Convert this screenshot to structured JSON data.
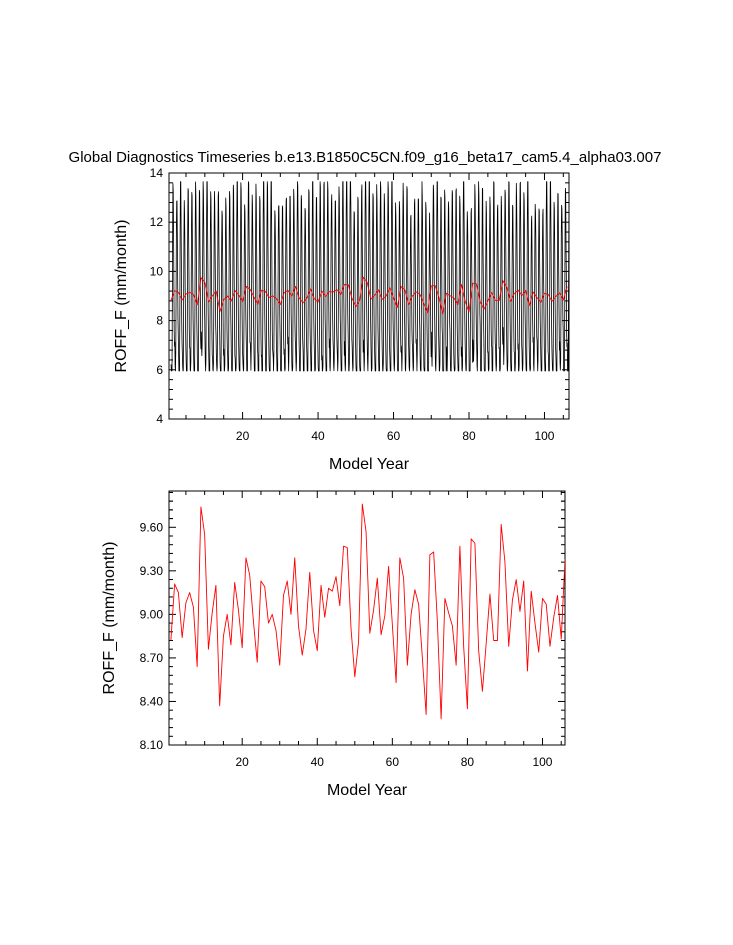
{
  "chart_data": [
    {
      "type": "line",
      "title": "Global Diagnostics Timeseries b.e13.B1850C5CN.f09_g16_beta17_cam5.4_alpha03.007",
      "xlabel": "Model Year",
      "ylabel": "ROFF_F (mm/month)",
      "xlim": [
        0.5,
        106.5
      ],
      "ylim": [
        4,
        14
      ],
      "xticks": [
        20,
        40,
        60,
        80,
        100
      ],
      "yticks": [
        4,
        6,
        8,
        10,
        12,
        14
      ],
      "ytick_labels": [
        "4",
        "6",
        "8",
        "10",
        "12",
        "14"
      ],
      "grid": false,
      "series": [
        {
          "color": "#000000",
          "description": "monthly values, strong seasonal cycle between ~6.2 and ~13.6",
          "x_start": 1.0417,
          "x_step": 0.083333,
          "values": []
        },
        {
          "color": "#ff0000",
          "x": [
            1,
            2,
            3,
            4,
            5,
            6,
            7,
            8,
            9,
            10,
            11,
            12,
            13,
            14,
            15,
            16,
            17,
            18,
            19,
            20,
            21,
            22,
            23,
            24,
            25,
            26,
            27,
            28,
            29,
            30,
            31,
            32,
            33,
            34,
            35,
            36,
            37,
            38,
            39,
            40,
            41,
            42,
            43,
            44,
            45,
            46,
            47,
            48,
            49,
            50,
            51,
            52,
            53,
            54,
            55,
            56,
            57,
            58,
            59,
            60,
            61,
            62,
            63,
            64,
            65,
            66,
            67,
            68,
            69,
            70,
            71,
            72,
            73,
            74,
            75,
            76,
            77,
            78,
            79,
            80,
            81,
            82,
            83,
            84,
            85,
            86,
            87,
            88,
            89,
            90,
            91,
            92,
            93,
            94,
            95,
            96,
            97,
            98,
            99,
            100,
            101,
            102,
            103,
            104,
            105,
            106
          ],
          "values": [
            8.82,
            9.21,
            9.15,
            8.84,
            9.08,
            9.15,
            9.05,
            8.64,
            9.74,
            9.55,
            8.76,
            9.01,
            9.2,
            8.37,
            8.85,
            9.0,
            8.79,
            9.22,
            9.03,
            8.77,
            9.39,
            9.27,
            8.95,
            8.67,
            9.23,
            9.19,
            8.94,
            9.0,
            8.89,
            8.65,
            9.13,
            9.23,
            9.0,
            9.39,
            8.92,
            8.72,
            8.9,
            9.29,
            8.89,
            8.75,
            9.2,
            8.98,
            9.18,
            9.16,
            9.26,
            9.06,
            9.47,
            9.46,
            8.9,
            8.57,
            8.81,
            9.76,
            9.57,
            8.87,
            9.03,
            9.25,
            8.86,
            8.99,
            9.33,
            8.93,
            8.53,
            9.39,
            9.25,
            8.65,
            9.0,
            9.17,
            9.07,
            8.7,
            8.31,
            9.41,
            9.43,
            8.95,
            8.28,
            9.11,
            9.01,
            8.92,
            8.65,
            9.47,
            8.78,
            8.35,
            9.52,
            9.49,
            8.75,
            8.47,
            8.8,
            9.14,
            8.82,
            8.82,
            9.62,
            9.36,
            8.78,
            9.1,
            9.24,
            9.02,
            9.23,
            8.61,
            9.16,
            8.94,
            8.74,
            9.11,
            9.07,
            8.78,
            8.98,
            9.13,
            8.83,
            9.38
          ]
        }
      ]
    },
    {
      "type": "line",
      "title": "",
      "xlabel": "Model Year",
      "ylabel": "ROFF_F (mm/month)",
      "xlim": [
        0.5,
        106.0
      ],
      "ylim": [
        8.1,
        9.85
      ],
      "xticks": [
        20,
        40,
        60,
        80,
        100
      ],
      "yticks": [
        8.1,
        8.4,
        8.7,
        9.0,
        9.3,
        9.6
      ],
      "ytick_labels": [
        "8.10",
        "8.40",
        "8.70",
        "9.00",
        "9.30",
        "9.60"
      ],
      "grid": false,
      "series": [
        {
          "color": "#ff0000",
          "x": [
            1,
            2,
            3,
            4,
            5,
            6,
            7,
            8,
            9,
            10,
            11,
            12,
            13,
            14,
            15,
            16,
            17,
            18,
            19,
            20,
            21,
            22,
            23,
            24,
            25,
            26,
            27,
            28,
            29,
            30,
            31,
            32,
            33,
            34,
            35,
            36,
            37,
            38,
            39,
            40,
            41,
            42,
            43,
            44,
            45,
            46,
            47,
            48,
            49,
            50,
            51,
            52,
            53,
            54,
            55,
            56,
            57,
            58,
            59,
            60,
            61,
            62,
            63,
            64,
            65,
            66,
            67,
            68,
            69,
            70,
            71,
            72,
            73,
            74,
            75,
            76,
            77,
            78,
            79,
            80,
            81,
            82,
            83,
            84,
            85,
            86,
            87,
            88,
            89,
            90,
            91,
            92,
            93,
            94,
            95,
            96,
            97,
            98,
            99,
            100,
            101,
            102,
            103,
            104,
            105,
            106
          ],
          "values": [
            8.82,
            9.21,
            9.15,
            8.84,
            9.08,
            9.15,
            9.05,
            8.64,
            9.74,
            9.55,
            8.76,
            9.01,
            9.2,
            8.37,
            8.85,
            9.0,
            8.79,
            9.22,
            9.03,
            8.77,
            9.39,
            9.27,
            8.95,
            8.67,
            9.23,
            9.19,
            8.94,
            9.0,
            8.89,
            8.65,
            9.13,
            9.23,
            9.0,
            9.39,
            8.92,
            8.72,
            8.9,
            9.29,
            8.89,
            8.75,
            9.2,
            8.98,
            9.18,
            9.16,
            9.26,
            9.06,
            9.47,
            9.46,
            8.9,
            8.57,
            8.81,
            9.76,
            9.57,
            8.87,
            9.03,
            9.25,
            8.86,
            8.99,
            9.33,
            8.93,
            8.53,
            9.39,
            9.25,
            8.65,
            9.0,
            9.17,
            9.07,
            8.7,
            8.31,
            9.41,
            9.43,
            8.95,
            8.28,
            9.11,
            9.01,
            8.92,
            8.65,
            9.47,
            8.78,
            8.35,
            9.52,
            9.49,
            8.75,
            8.47,
            8.8,
            9.14,
            8.82,
            8.82,
            9.62,
            9.36,
            8.78,
            9.1,
            9.24,
            9.02,
            9.23,
            8.61,
            9.16,
            8.94,
            8.74,
            9.11,
            9.07,
            8.78,
            8.98,
            9.13,
            8.83,
            9.38
          ]
        }
      ]
    }
  ]
}
